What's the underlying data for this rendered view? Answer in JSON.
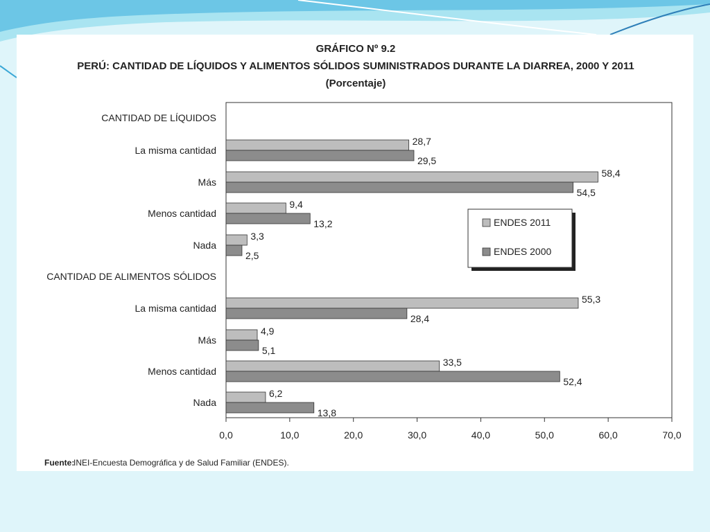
{
  "chart_data": {
    "type": "bar",
    "orientation": "horizontal",
    "title_line1": "GRÁFICO Nº 9.2",
    "title_line2": "PERÚ: CANTIDAD DE LÍQUIDOS Y ALIMENTOS SÓLIDOS SUMINISTRADOS DURANTE LA DIARREA, 2000 Y 2011",
    "subtitle": "(Porcentaje)",
    "groups": [
      {
        "label": "CANTIDAD DE LÍQUIDOS",
        "categories": [
          "La misma cantidad",
          "Más",
          "Menos cantidad",
          "Nada"
        ],
        "series": [
          {
            "name": "ENDES 2011",
            "values": [
              28.7,
              58.4,
              9.4,
              3.3
            ],
            "labels": [
              "28,7",
              "58,4",
              "9,4",
              "3,3"
            ]
          },
          {
            "name": "ENDES 2000",
            "values": [
              29.5,
              54.5,
              13.2,
              2.5
            ],
            "labels": [
              "29,5",
              "54,5",
              "13,2",
              "2,5"
            ]
          }
        ]
      },
      {
        "label": "CANTIDAD DE ALIMENTOS SÓLIDOS",
        "categories": [
          "La misma cantidad",
          "Más",
          "Menos cantidad",
          "Nada"
        ],
        "series": [
          {
            "name": "ENDES 2011",
            "values": [
              55.3,
              4.9,
              33.5,
              6.2
            ],
            "labels": [
              "55,3",
              "4,9",
              "33,5",
              "6,2"
            ]
          },
          {
            "name": "ENDES 2000",
            "values": [
              28.4,
              5.1,
              52.4,
              13.8
            ],
            "labels": [
              "28,4",
              "5,1",
              "52,4",
              "13,8"
            ]
          }
        ]
      }
    ],
    "legend": [
      "ENDES 2011",
      "ENDES 2000"
    ],
    "legend_position": "right-middle",
    "xlim": [
      0,
      70
    ],
    "xticks": [
      0,
      10,
      20,
      30,
      40,
      50,
      60,
      70
    ],
    "xtick_labels": [
      "0,0",
      "10,0",
      "20,0",
      "30,0",
      "40,0",
      "50,0",
      "60,0",
      "70,0"
    ],
    "grid": false,
    "colors": {
      "ENDES 2011": "#bdbdbd",
      "ENDES 2000": "#8c8c8c"
    }
  },
  "source": {
    "label": "Fuente:",
    "text": "INEI-Encuesta Demográfica y de Salud Familiar (ENDES)."
  },
  "theme": {
    "background": "#dff5fa",
    "swoosh_dark": "#3aa7d6",
    "swoosh_light": "#a9e4f1"
  }
}
